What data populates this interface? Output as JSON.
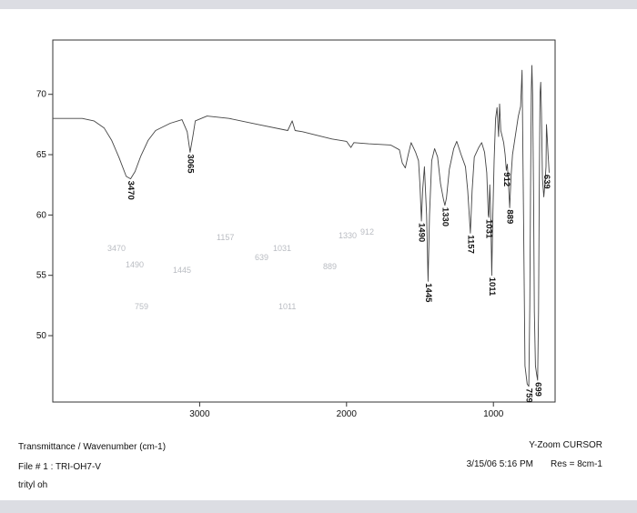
{
  "chart_data": {
    "type": "line",
    "xlabel": "",
    "ylabel": "",
    "x_reversed": true,
    "xlim": [
      4000,
      580
    ],
    "ylim": [
      44.5,
      74.5
    ],
    "x_ticks": [
      3000,
      2000,
      1000
    ],
    "y_ticks": [
      50,
      55,
      60,
      65,
      70
    ],
    "grid": false,
    "line_color": "#444444",
    "series": [
      {
        "points": [
          [
            4000,
            68.0
          ],
          [
            3900,
            68.0
          ],
          [
            3800,
            68.0
          ],
          [
            3720,
            67.8
          ],
          [
            3650,
            67.2
          ],
          [
            3600,
            66.2
          ],
          [
            3550,
            64.8
          ],
          [
            3500,
            63.2
          ],
          [
            3470,
            63.0
          ],
          [
            3440,
            63.6
          ],
          [
            3400,
            64.9
          ],
          [
            3350,
            66.2
          ],
          [
            3300,
            67.0
          ],
          [
            3200,
            67.6
          ],
          [
            3120,
            67.9
          ],
          [
            3085,
            66.9
          ],
          [
            3065,
            65.2
          ],
          [
            3045,
            66.6
          ],
          [
            3030,
            67.8
          ],
          [
            2950,
            68.2
          ],
          [
            2800,
            68.0
          ],
          [
            2600,
            67.5
          ],
          [
            2400,
            67.0
          ],
          [
            2370,
            67.8
          ],
          [
            2350,
            67.0
          ],
          [
            2300,
            66.9
          ],
          [
            2200,
            66.6
          ],
          [
            2100,
            66.3
          ],
          [
            2000,
            66.1
          ],
          [
            1970,
            65.6
          ],
          [
            1950,
            66.0
          ],
          [
            1850,
            65.9
          ],
          [
            1700,
            65.8
          ],
          [
            1640,
            65.4
          ],
          [
            1620,
            64.3
          ],
          [
            1600,
            63.9
          ],
          [
            1580,
            65.0
          ],
          [
            1560,
            66.0
          ],
          [
            1530,
            65.2
          ],
          [
            1510,
            64.5
          ],
          [
            1500,
            62.5
          ],
          [
            1490,
            59.5
          ],
          [
            1482,
            62.0
          ],
          [
            1470,
            64.0
          ],
          [
            1455,
            60.0
          ],
          [
            1445,
            54.5
          ],
          [
            1435,
            60.0
          ],
          [
            1420,
            64.5
          ],
          [
            1400,
            65.5
          ],
          [
            1380,
            64.8
          ],
          [
            1360,
            62.6
          ],
          [
            1340,
            61.3
          ],
          [
            1330,
            60.8
          ],
          [
            1320,
            61.4
          ],
          [
            1300,
            63.8
          ],
          [
            1270,
            65.5
          ],
          [
            1250,
            66.1
          ],
          [
            1220,
            65.0
          ],
          [
            1190,
            64.0
          ],
          [
            1175,
            62.0
          ],
          [
            1157,
            58.5
          ],
          [
            1145,
            62.0
          ],
          [
            1130,
            64.8
          ],
          [
            1100,
            65.6
          ],
          [
            1080,
            66.0
          ],
          [
            1060,
            65.2
          ],
          [
            1045,
            63.5
          ],
          [
            1035,
            60.0
          ],
          [
            1031,
            59.8
          ],
          [
            1025,
            62.5
          ],
          [
            1018,
            60.0
          ],
          [
            1011,
            55.0
          ],
          [
            1004,
            60.0
          ],
          [
            995,
            64.5
          ],
          [
            985,
            68.0
          ],
          [
            975,
            68.9
          ],
          [
            965,
            66.5
          ],
          [
            958,
            69.2
          ],
          [
            950,
            67.0
          ],
          [
            940,
            66.5
          ],
          [
            930,
            66.0
          ],
          [
            920,
            65.0
          ],
          [
            912,
            63.7
          ],
          [
            905,
            64.2
          ],
          [
            897,
            62.6
          ],
          [
            889,
            60.6
          ],
          [
            880,
            63.2
          ],
          [
            870,
            65.0
          ],
          [
            850,
            66.6
          ],
          [
            830,
            68.2
          ],
          [
            815,
            69.0
          ],
          [
            805,
            72.0
          ],
          [
            795,
            60.0
          ],
          [
            785,
            47.5
          ],
          [
            770,
            46.0
          ],
          [
            759,
            45.8
          ],
          [
            752,
            52.5
          ],
          [
            747,
            62.0
          ],
          [
            742,
            70.5
          ],
          [
            738,
            72.4
          ],
          [
            733,
            70.0
          ],
          [
            727,
            62.0
          ],
          [
            721,
            52.0
          ],
          [
            714,
            47.5
          ],
          [
            706,
            46.8
          ],
          [
            699,
            46.3
          ],
          [
            693,
            52.0
          ],
          [
            688,
            62.0
          ],
          [
            683,
            70.0
          ],
          [
            678,
            71.0
          ],
          [
            673,
            68.5
          ],
          [
            666,
            63.0
          ],
          [
            657,
            61.5
          ],
          [
            648,
            62.8
          ],
          [
            642,
            64.0
          ],
          [
            639,
            67.5
          ],
          [
            634,
            66.5
          ],
          [
            628,
            65.0
          ],
          [
            620,
            63.5
          ]
        ]
      }
    ],
    "annotations": [
      {
        "label": "3470",
        "x": 3470,
        "y": 63.0
      },
      {
        "label": "3065",
        "x": 3065,
        "y": 65.2
      },
      {
        "label": "1490",
        "x": 1490,
        "y": 59.5
      },
      {
        "label": "1445",
        "x": 1445,
        "y": 54.5
      },
      {
        "label": "1330",
        "x": 1330,
        "y": 60.8
      },
      {
        "label": "1157",
        "x": 1157,
        "y": 58.5
      },
      {
        "label": "1031",
        "x": 1031,
        "y": 59.8
      },
      {
        "label": "1011",
        "x": 1011,
        "y": 55.0
      },
      {
        "label": "912",
        "x": 912,
        "y": 63.7
      },
      {
        "label": "889",
        "x": 889,
        "y": 60.6
      },
      {
        "label": "759",
        "x": 759,
        "y": 45.8
      },
      {
        "label": "699",
        "x": 699,
        "y": 46.3
      },
      {
        "label": "639",
        "x": 639,
        "y": 63.5
      }
    ]
  },
  "footer": {
    "axis_title": "Transmittance / Wavenumber (cm-1)",
    "file": "File # 1 : TRI-OH7-V",
    "sample": "trityl oh",
    "mode": "Y-Zoom CURSOR",
    "datetime": "3/15/06  5:16 PM",
    "resolution": "Res = 8cm-1"
  },
  "bleed_through": [
    "3470",
    "1490",
    "1445",
    "1157",
    "639",
    "1031",
    "889",
    "1330",
    "1011",
    "912",
    "759"
  ]
}
